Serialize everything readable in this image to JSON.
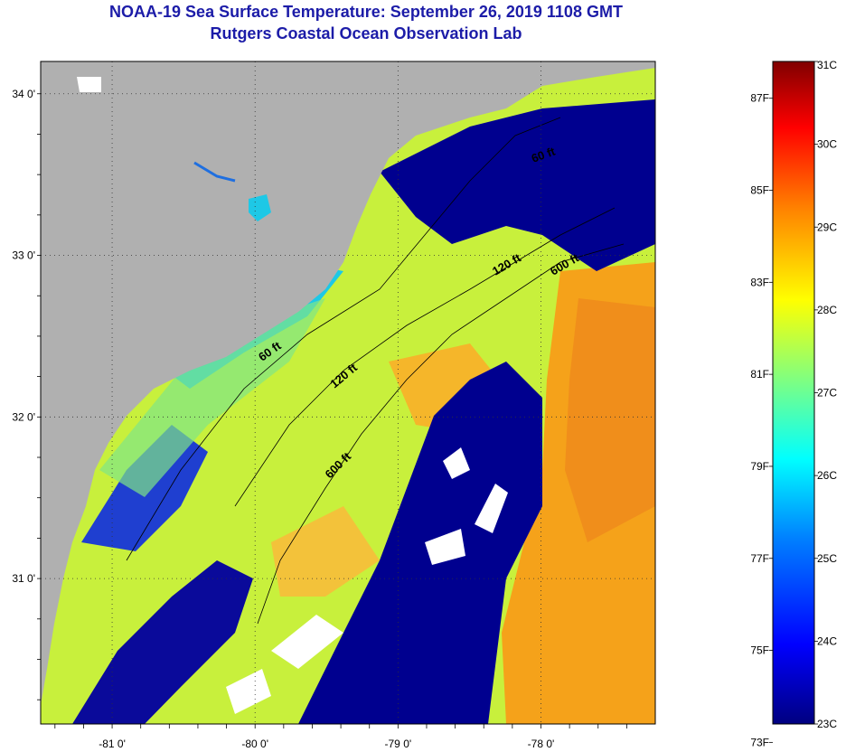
{
  "title": "NOAA-19 Sea Surface Temperature:  September 26, 2019 1108 GMT",
  "subtitle": "Rutgers Coastal Ocean Observation Lab",
  "map": {
    "lon_range": [
      -81.5,
      -77.2
    ],
    "lat_range": [
      30.1,
      34.2
    ],
    "lat_ticks": [
      {
        "value": 34,
        "label": "34 0'"
      },
      {
        "value": 33,
        "label": "33 0'"
      },
      {
        "value": 32,
        "label": "32 0'"
      },
      {
        "value": 31,
        "label": "31 0'"
      }
    ],
    "lon_ticks": [
      {
        "value": -81,
        "label": "-81 0'"
      },
      {
        "value": -80,
        "label": "-80 0'"
      },
      {
        "value": -79,
        "label": "-79 0'"
      },
      {
        "value": -78,
        "label": "-78 0'"
      }
    ],
    "contour_labels": [
      "60 ft",
      "120 ft",
      "600 ft",
      "60 ft",
      "120 ft",
      "600 ft"
    ],
    "colors": {
      "land": "#b0b0b0",
      "cold": "#00008f",
      "blue": "#1f6fe0",
      "cyan": "#1ec8e6",
      "yellow_green": "#c8f03c",
      "green": "#7fe686",
      "orange": "#f5a21a",
      "orange_dark": "#ef8a1c",
      "cloud": "#ffffff"
    }
  },
  "colorbar": {
    "fahrenheit_labels": [
      "87F",
      "85F",
      "83F",
      "81F",
      "79F",
      "77F",
      "75F",
      "73F"
    ],
    "celsius_labels": [
      "31C",
      "30C",
      "29C",
      "28C",
      "27C",
      "26C",
      "25C",
      "24C",
      "23C"
    ],
    "min_c": 23,
    "max_c": 31
  }
}
